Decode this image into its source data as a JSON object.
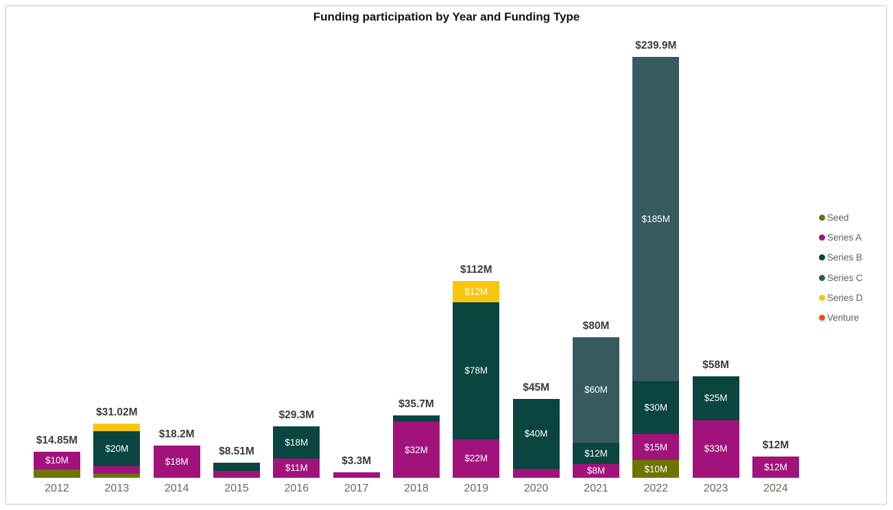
{
  "title": "Funding participation by Year and Funding Type",
  "chart_data": {
    "type": "bar",
    "stacked": true,
    "title": "Funding participation by Year and Funding Type",
    "xlabel": "",
    "ylabel": "",
    "value_unit": "$M",
    "grid": false,
    "y_axis_visible": false,
    "categories": [
      "2012",
      "2013",
      "2014",
      "2015",
      "2016",
      "2017",
      "2018",
      "2019",
      "2020",
      "2021",
      "2022",
      "2023",
      "2024"
    ],
    "series": [
      {
        "name": "Seed",
        "color": "#6B7500",
        "values": [
          4.85,
          2.52,
          0,
          0,
          0,
          0,
          0,
          0,
          0,
          0,
          10,
          0,
          0
        ],
        "labels": [
          null,
          null,
          null,
          null,
          null,
          null,
          null,
          null,
          null,
          null,
          "$10M",
          null,
          null
        ]
      },
      {
        "name": "Series A",
        "color": "#A1137B",
        "values": [
          10,
          4,
          18.2,
          4,
          11,
          3.3,
          32,
          22,
          5,
          8,
          15,
          33,
          12
        ],
        "labels": [
          "$10M",
          null,
          "$18M",
          null,
          "$11M",
          null,
          "$32M",
          "$22M",
          null,
          "$8M",
          "$15M",
          "$33M",
          "$12M"
        ]
      },
      {
        "name": "Series B",
        "color": "#0A4540",
        "values": [
          0,
          20,
          0,
          4.51,
          18.3,
          0,
          3.7,
          78,
          40,
          12,
          30,
          25,
          0
        ],
        "labels": [
          null,
          "$20M",
          null,
          null,
          "$18M",
          null,
          null,
          "$78M",
          "$40M",
          "$12M",
          "$30M",
          "$25M",
          null
        ]
      },
      {
        "name": "Series C",
        "color": "#375A5F",
        "values": [
          0,
          0,
          0,
          0,
          0,
          0,
          0,
          0,
          0,
          60,
          184.9,
          0,
          0
        ],
        "labels": [
          null,
          null,
          null,
          null,
          null,
          null,
          null,
          null,
          null,
          "$60M",
          "$185M",
          null,
          null
        ]
      },
      {
        "name": "Series D",
        "color": "#F7C70D",
        "values": [
          0,
          4.5,
          0,
          0,
          0,
          0,
          0,
          12,
          0,
          0,
          0,
          0,
          0
        ],
        "labels": [
          null,
          null,
          null,
          null,
          null,
          null,
          null,
          "$12M",
          null,
          null,
          null,
          null,
          null
        ]
      },
      {
        "name": "Venture",
        "color": "#F04E23",
        "values": [
          0,
          0,
          0,
          0,
          0,
          0,
          0,
          0,
          0,
          0,
          0,
          0,
          0
        ],
        "labels": [
          null,
          null,
          null,
          null,
          null,
          null,
          null,
          null,
          null,
          null,
          null,
          null,
          null
        ]
      }
    ],
    "totals": {
      "values": [
        14.85,
        31.02,
        18.2,
        8.51,
        29.3,
        3.3,
        35.7,
        112,
        45,
        80,
        239.9,
        58,
        12
      ],
      "labels": [
        "$14.85M",
        "$31.02M",
        "$18.2M",
        "$8.51M",
        "$29.3M",
        "$3.3M",
        "$35.7M",
        "$112M",
        "$45M",
        "$80M",
        "$239.9M",
        "$58M",
        "$12M"
      ]
    },
    "legend": {
      "position": "right",
      "items": [
        "Seed",
        "Series A",
        "Series B",
        "Series C",
        "Series D",
        "Venture"
      ]
    }
  }
}
